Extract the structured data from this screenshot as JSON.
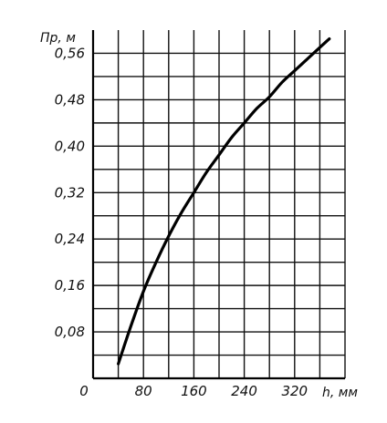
{
  "chart_data": {
    "type": "line",
    "title": "",
    "xlabel": "h, мм",
    "ylabel": "Пр, м",
    "xlim": [
      0,
      400
    ],
    "ylim": [
      0,
      0.6
    ],
    "x_major_ticks": [
      0,
      80,
      160,
      240,
      320
    ],
    "x_tick_labels": [
      "0",
      "80",
      "160",
      "240",
      "320"
    ],
    "y_major_ticks": [
      0.08,
      0.16,
      0.24,
      0.32,
      0.4,
      0.48,
      0.56
    ],
    "y_tick_labels": [
      "0,08",
      "0,16",
      "0,24",
      "0,32",
      "0,40",
      "0,48",
      "0,56"
    ],
    "x_grid_step": 40,
    "y_grid_step": 0.04,
    "grid": true,
    "legend": "none",
    "series": [
      {
        "x": [
          40,
          60,
          80,
          100,
          120,
          140,
          160,
          180,
          200,
          220,
          240,
          260,
          280,
          300,
          320,
          340,
          360,
          375
        ],
        "y": [
          0.025,
          0.09,
          0.15,
          0.2,
          0.245,
          0.285,
          0.32,
          0.355,
          0.385,
          0.415,
          0.44,
          0.465,
          0.485,
          0.51,
          0.53,
          0.55,
          0.57,
          0.585
        ]
      }
    ]
  }
}
